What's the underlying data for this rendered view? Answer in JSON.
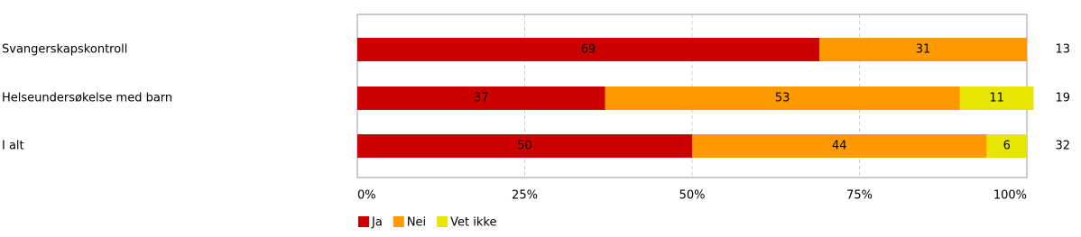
{
  "chart_data": {
    "type": "stacked-bar-horizontal",
    "categories": [
      "Svangerskapskontroll",
      "Helseundersøkelse med barn",
      "I alt"
    ],
    "series": [
      {
        "name": "Ja",
        "color": "#cc0000",
        "values": [
          69,
          37,
          50
        ]
      },
      {
        "name": "Nei",
        "color": "#ff9900",
        "values": [
          31,
          53,
          44
        ]
      },
      {
        "name": "Vet ikke",
        "color": "#e6e600",
        "values": [
          null,
          11,
          6
        ]
      }
    ],
    "counts": [
      13,
      19,
      32
    ],
    "xlim": [
      0,
      100
    ],
    "xticks": [
      {
        "value": 0,
        "label": "0%"
      },
      {
        "value": 25,
        "label": "25%"
      },
      {
        "value": 50,
        "label": "50%"
      },
      {
        "value": 75,
        "label": "75%"
      },
      {
        "value": 100,
        "label": "100%"
      }
    ],
    "grid": true
  }
}
